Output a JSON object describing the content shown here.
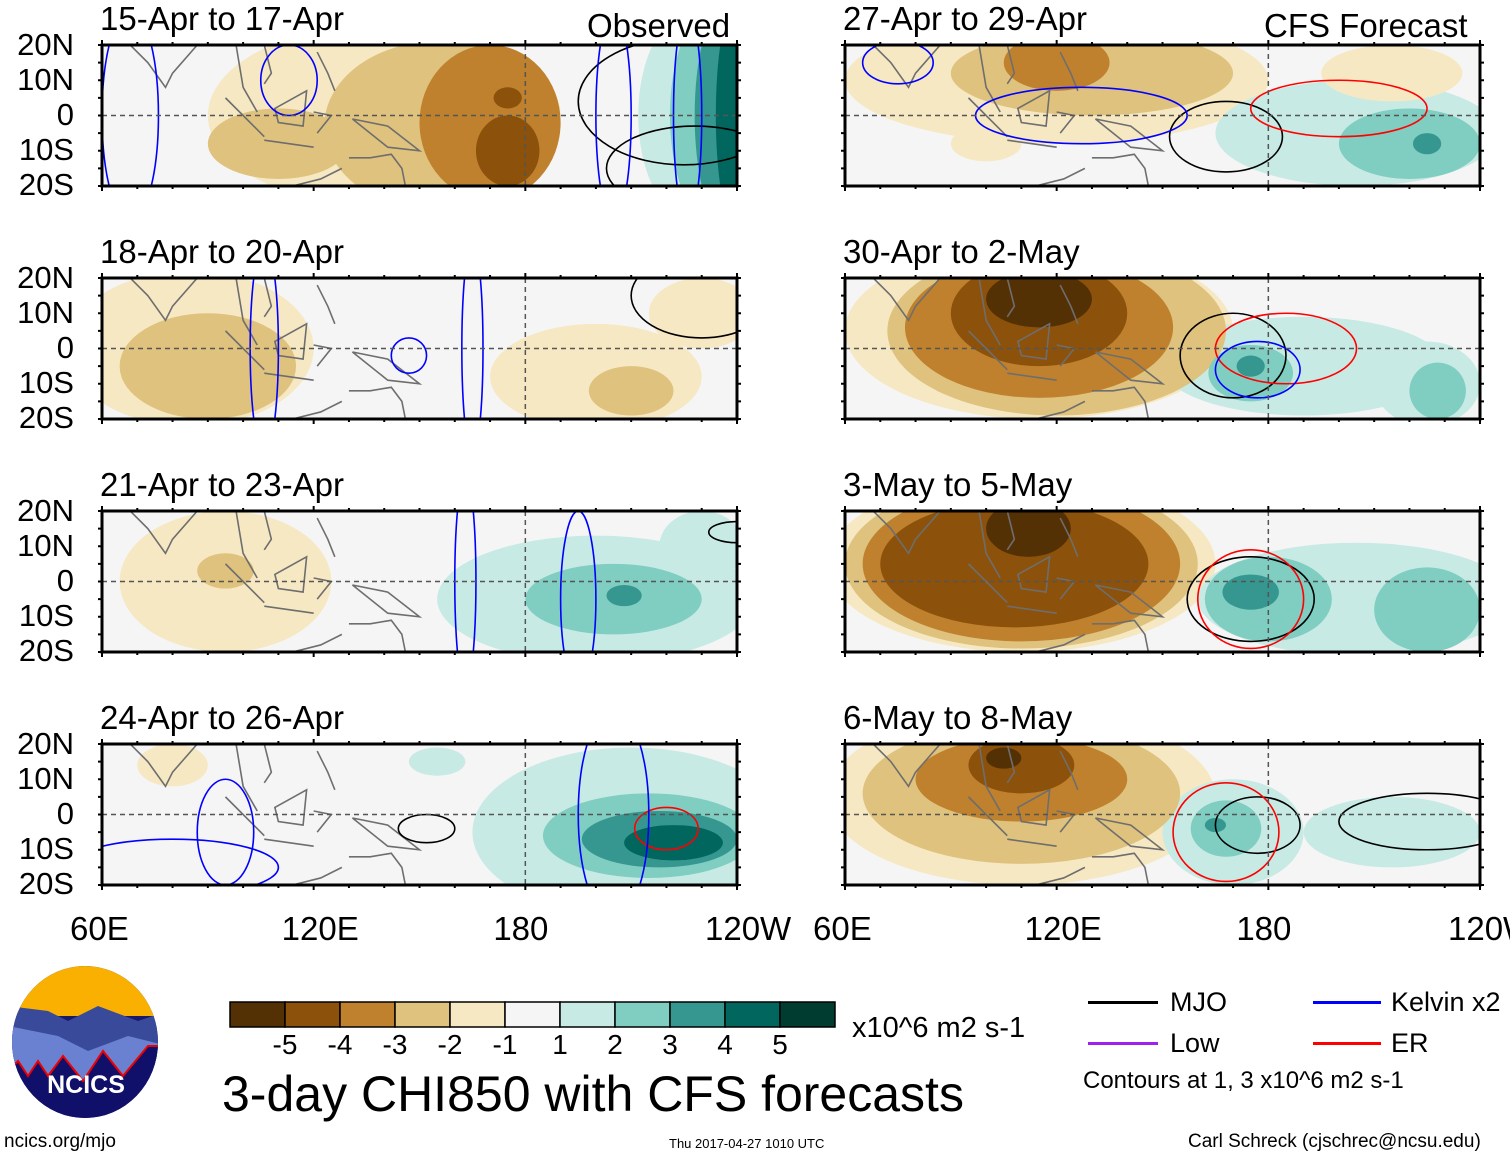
{
  "corner_labels": {
    "observed": "Observed",
    "forecast": "CFS Forecast"
  },
  "panels": [
    {
      "title": "15-Apr to 17-Apr",
      "type": "observed"
    },
    {
      "title": "18-Apr to 20-Apr",
      "type": "observed"
    },
    {
      "title": "21-Apr to 23-Apr",
      "type": "observed"
    },
    {
      "title": "24-Apr to 26-Apr",
      "type": "observed"
    },
    {
      "title": "27-Apr to 29-Apr",
      "type": "forecast"
    },
    {
      "title": "30-Apr to 2-May",
      "type": "forecast"
    },
    {
      "title": "3-May to 5-May",
      "type": "forecast"
    },
    {
      "title": "6-May to 8-May",
      "type": "forecast"
    }
  ],
  "lat_labels": [
    "20N",
    "10N",
    "0",
    "10S",
    "20S"
  ],
  "lon_labels": [
    "60E",
    "120E",
    "180",
    "120W"
  ],
  "colorbar": {
    "labels": [
      "-5",
      "-4",
      "-3",
      "-2",
      "-1",
      "1",
      "2",
      "3",
      "4",
      "5"
    ],
    "colors": [
      "#543005",
      "#8c510a",
      "#bf812d",
      "#dfc27d",
      "#f6e8c3",
      "#f5f5f5",
      "#c7eae5",
      "#80cdc1",
      "#35978f",
      "#01665e",
      "#003c30"
    ],
    "units": "x10^6 m2 s-1"
  },
  "title": "3-day CHI850 with CFS forecasts",
  "legend": {
    "items": [
      {
        "label": "MJO",
        "color": "#000000"
      },
      {
        "label": "Kelvin x2",
        "color": "#0000ff"
      },
      {
        "label": "Low",
        "color": "#a020f0"
      },
      {
        "label": "ER",
        "color": "#ff0000"
      }
    ],
    "note": "Contours at 1, 3 x10^6 m2 s-1"
  },
  "logo_text": "NCICS",
  "footer": {
    "url": "ncics.org/mjo",
    "timestamp": "Thu 2017-04-27 1010 UTC",
    "author": "Carl Schreck (cjschrec@ncsu.edu)"
  }
}
